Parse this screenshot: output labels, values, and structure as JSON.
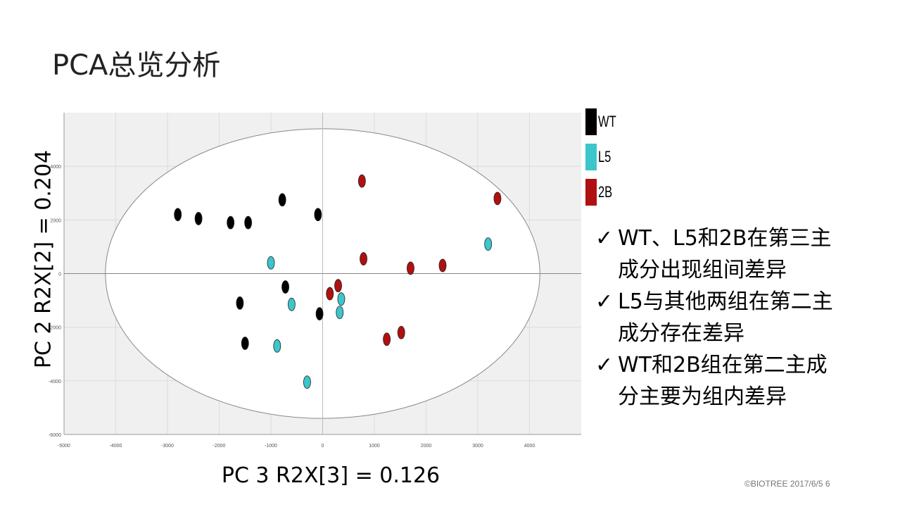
{
  "slide": {
    "title": "PCA总览分析",
    "footer": "©BIOTREE 2017/6/5  6"
  },
  "legend": [
    {
      "label": "WT",
      "color": "#000000"
    },
    {
      "label": "L5",
      "color": "#3cc6cc"
    },
    {
      "label": "2B",
      "color": "#b01010"
    }
  ],
  "bullets": [
    {
      "check": "✓",
      "line1": "WT、L5和2B在第三主",
      "line2": "成分出现组间差异"
    },
    {
      "check": "✓",
      "line1": "L5与其他两组在第二主",
      "line2": "成分存在差异"
    },
    {
      "check": "✓",
      "line1": "WT和2B组在第二主成",
      "line2": "分主要为组内差异"
    }
  ],
  "chart_data": {
    "type": "scatter",
    "xlabel": "PC 3 R2X[3] = 0.126",
    "ylabel": "PC 2 R2X[2] = 0.204",
    "xlim": [
      -5000,
      5000
    ],
    "ylim": [
      -6000,
      6000
    ],
    "x_ticks": [
      "-5000",
      "-4000",
      "-3000",
      "-2000",
      "-1000",
      "0",
      "1000",
      "2000",
      "3000",
      "4000"
    ],
    "y_ticks": [
      "-6000",
      "-4000",
      "-2000",
      "0",
      "2000",
      "4000"
    ],
    "grid": true,
    "ellipse": {
      "cx": 0,
      "cy": 0,
      "rx": 4200,
      "ry": 5400
    },
    "series": [
      {
        "name": "WT",
        "color": "#000000",
        "points": [
          [
            -2800,
            2200
          ],
          [
            -2400,
            2050
          ],
          [
            -1780,
            1900
          ],
          [
            -1440,
            1900
          ],
          [
            -780,
            2750
          ],
          [
            -90,
            2200
          ],
          [
            -720,
            -500
          ],
          [
            -1600,
            -1100
          ],
          [
            -1500,
            -2600
          ],
          [
            -60,
            -1500
          ]
        ]
      },
      {
        "name": "L5",
        "color": "#3cc6cc",
        "points": [
          [
            -1000,
            400
          ],
          [
            -600,
            -1150
          ],
          [
            360,
            -950
          ],
          [
            330,
            -1450
          ],
          [
            -880,
            -2700
          ],
          [
            -300,
            -4050
          ],
          [
            3200,
            1100
          ]
        ]
      },
      {
        "name": "2B",
        "color": "#b01010",
        "points": [
          [
            760,
            3450
          ],
          [
            790,
            550
          ],
          [
            1700,
            200
          ],
          [
            2320,
            300
          ],
          [
            3380,
            2800
          ],
          [
            140,
            -750
          ],
          [
            300,
            -450
          ],
          [
            1240,
            -2450
          ],
          [
            1520,
            -2200
          ]
        ]
      }
    ]
  }
}
